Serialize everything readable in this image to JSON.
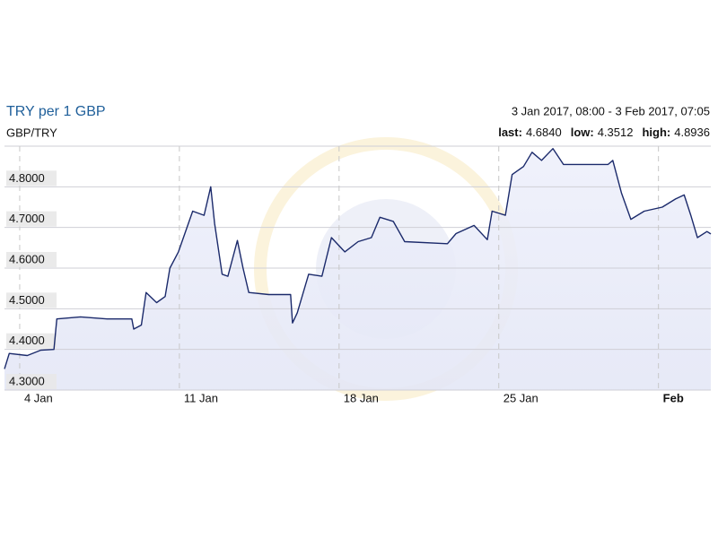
{
  "chart_data": {
    "type": "line",
    "title": "TRY per 1 GBP",
    "subtitle": "GBP/TRY",
    "range_label": "3 Jan 2017, 08:00 - 3 Feb 2017, 07:05",
    "stats": [
      {
        "name": "last:",
        "value": "4.6840"
      },
      {
        "name": "low:",
        "value": "4.3512"
      },
      {
        "name": "high:",
        "value": "4.8936"
      }
    ],
    "x": [
      "2017-01-03T08:00",
      "2017-01-03T13:00",
      "2017-01-04T08:00",
      "2017-01-04T22:00",
      "2017-01-05T12:00",
      "2017-01-05T15:00",
      "2017-01-06T16:00",
      "2017-01-07T20:00",
      "2017-01-08T22:00",
      "2017-01-09T00:00",
      "2017-01-09T08:00",
      "2017-01-09T13:00",
      "2017-01-10T00:00",
      "2017-01-10T09:00",
      "2017-01-10T14:00",
      "2017-01-10T23:00",
      "2017-01-11T14:00",
      "2017-01-12T02:00",
      "2017-01-12T09:00",
      "2017-01-12T13:00",
      "2017-01-12T21:00",
      "2017-01-13T03:00",
      "2017-01-13T13:00",
      "2017-01-13T19:00",
      "2017-01-14T01:00",
      "2017-01-14T22:00",
      "2017-01-15T21:00",
      "2017-01-15T23:00",
      "2017-01-16T04:00",
      "2017-01-16T16:00",
      "2017-01-17T06:00",
      "2017-01-17T16:00",
      "2017-01-18T06:00",
      "2017-01-18T20:00",
      "2017-01-19T10:00",
      "2017-01-19T19:00",
      "2017-01-20T09:00",
      "2017-01-20T21:00",
      "2017-01-22T18:00",
      "2017-01-23T03:00",
      "2017-01-23T22:00",
      "2017-01-24T12:00",
      "2017-01-24T17:00",
      "2017-01-25T07:00",
      "2017-01-25T14:00",
      "2017-01-26T02:00",
      "2017-01-26T11:00",
      "2017-01-26T21:00",
      "2017-01-27T09:00",
      "2017-01-27T20:00",
      "2017-01-29T19:00",
      "2017-01-30T00:00",
      "2017-01-30T09:00",
      "2017-01-30T19:00",
      "2017-01-31T09:00",
      "2017-02-01T04:00",
      "2017-02-01T18:00",
      "2017-02-02T03:00",
      "2017-02-02T10:00",
      "2017-02-02T17:00",
      "2017-02-03T03:00",
      "2017-02-03T07:05"
    ],
    "series": [
      {
        "name": "GBP/TRY",
        "color": "#1b2a6b",
        "values": [
          4.352,
          4.39,
          4.385,
          4.398,
          4.4,
          4.475,
          4.48,
          4.475,
          4.475,
          4.45,
          4.46,
          4.54,
          4.515,
          4.53,
          4.6,
          4.64,
          4.74,
          4.73,
          4.8,
          4.71,
          4.585,
          4.58,
          4.668,
          4.6,
          4.54,
          4.535,
          4.535,
          4.465,
          4.49,
          4.585,
          4.58,
          4.675,
          4.64,
          4.665,
          4.675,
          4.725,
          4.715,
          4.665,
          4.66,
          4.685,
          4.705,
          4.67,
          4.74,
          4.73,
          4.83,
          4.85,
          4.885,
          4.865,
          4.894,
          4.855,
          4.855,
          4.865,
          4.785,
          4.72,
          4.74,
          4.75,
          4.77,
          4.78,
          4.73,
          4.675,
          4.69,
          4.684
        ]
      }
    ],
    "xlim": [
      "2017-01-03T08:00",
      "2017-02-03T07:05"
    ],
    "xticks": [
      {
        "value": "2017-01-04T00:00",
        "label": "4 Jan"
      },
      {
        "value": "2017-01-11T00:00",
        "label": "11 Jan"
      },
      {
        "value": "2017-01-18T00:00",
        "label": "18 Jan"
      },
      {
        "value": "2017-01-25T00:00",
        "label": "25 Jan"
      },
      {
        "value": "2017-02-01T00:00",
        "label": "Feb"
      }
    ],
    "ylim": [
      4.3,
      4.9
    ],
    "yticks": [
      {
        "value": 4.3,
        "label": "4.3000"
      },
      {
        "value": 4.4,
        "label": "4.4000"
      },
      {
        "value": 4.5,
        "label": "4.5000"
      },
      {
        "value": 4.6,
        "label": "4.6000"
      },
      {
        "value": 4.7,
        "label": "4.7000"
      },
      {
        "value": 4.8,
        "label": "4.8000"
      }
    ],
    "grid": true
  }
}
